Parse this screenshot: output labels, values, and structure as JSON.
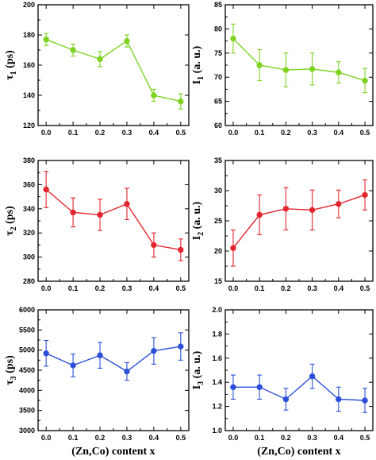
{
  "chart_data": [
    {
      "type": "line",
      "panel": "tau1",
      "ylabel": "τ1 (ps)",
      "ylabel_main": "τ",
      "ylabel_sub": "1",
      "ylabel_unit": " (ps)",
      "xlabel": "",
      "color": "#7ed321",
      "x": [
        0.0,
        0.1,
        0.2,
        0.3,
        0.4,
        0.5
      ],
      "y": [
        177,
        170,
        164,
        176,
        140,
        136
      ],
      "err": [
        4,
        4,
        5,
        4,
        4,
        5
      ],
      "ylim": [
        120,
        200
      ],
      "yticks": [
        "120",
        "140",
        "160",
        "180",
        "200"
      ],
      "xticks": [
        "0.0",
        "0.1",
        "0.2",
        "0.3",
        "0.4",
        "0.5"
      ]
    },
    {
      "type": "line",
      "panel": "I1",
      "ylabel": "I1 (a. u.)",
      "ylabel_main": "I",
      "ylabel_sub": "1",
      "ylabel_unit": " (a. u.)",
      "xlabel": "",
      "color": "#7ed321",
      "x": [
        0.0,
        0.1,
        0.2,
        0.3,
        0.4,
        0.5
      ],
      "y": [
        78,
        72.5,
        71.5,
        71.7,
        71,
        69.3
      ],
      "err": [
        3,
        3.2,
        3.5,
        3.3,
        2.2,
        2.5
      ],
      "ylim": [
        60,
        85
      ],
      "yticks": [
        "60",
        "65",
        "70",
        "75",
        "80",
        "85"
      ],
      "xticks": [
        "0.0",
        "0.1",
        "0.2",
        "0.3",
        "0.4",
        "0.5"
      ]
    },
    {
      "type": "line",
      "panel": "tau2",
      "ylabel": "τ2 (ps)",
      "ylabel_main": "τ",
      "ylabel_sub": "2",
      "ylabel_unit": " (ps)",
      "xlabel": "",
      "color": "#e3262f",
      "x": [
        0.0,
        0.1,
        0.2,
        0.3,
        0.4,
        0.5
      ],
      "y": [
        356,
        337,
        335,
        344,
        310,
        306
      ],
      "err": [
        15,
        12,
        13,
        13,
        10,
        9
      ],
      "ylim": [
        280,
        380
      ],
      "yticks": [
        "280",
        "300",
        "320",
        "340",
        "360",
        "380"
      ],
      "xticks": [
        "0.0",
        "0.1",
        "0.2",
        "0.3",
        "0.4",
        "0.5"
      ]
    },
    {
      "type": "line",
      "panel": "I2",
      "ylabel": "I2 (a. u.)",
      "ylabel_main": "I",
      "ylabel_sub": "2",
      "ylabel_unit": " (a. u.)",
      "xlabel": "",
      "color": "#e3262f",
      "x": [
        0.0,
        0.1,
        0.2,
        0.3,
        0.4,
        0.5
      ],
      "y": [
        20.5,
        26,
        27,
        26.8,
        27.8,
        29.3
      ],
      "err": [
        3,
        3.3,
        3.5,
        3.3,
        2.3,
        2.5
      ],
      "ylim": [
        15,
        35
      ],
      "yticks": [
        "15",
        "20",
        "25",
        "30",
        "35"
      ],
      "xticks": [
        "0.0",
        "0.1",
        "0.2",
        "0.3",
        "0.4",
        "0.5"
      ]
    },
    {
      "type": "line",
      "panel": "tau3",
      "ylabel": "τ3 (ps)",
      "ylabel_main": "τ",
      "ylabel_sub": "3",
      "ylabel_unit": " (ps)",
      "xlabel": "(Zn,Co) content x",
      "color": "#2b4fd8",
      "x": [
        0.0,
        0.1,
        0.2,
        0.3,
        0.4,
        0.5
      ],
      "y": [
        4920,
        4620,
        4870,
        4470,
        4980,
        5090
      ],
      "err": [
        320,
        280,
        320,
        220,
        330,
        340
      ],
      "ylim": [
        3000,
        6000
      ],
      "yticks": [
        "3000",
        "3500",
        "4000",
        "4500",
        "5000",
        "5500",
        "6000"
      ],
      "xticks": [
        "0.0",
        "0.1",
        "0.2",
        "0.3",
        "0.4",
        "0.5"
      ]
    },
    {
      "type": "line",
      "panel": "I3",
      "ylabel": "I3 (a. u.)",
      "ylabel_main": "I",
      "ylabel_sub": "3",
      "ylabel_unit": " (a. u.)",
      "xlabel": "(Zn,Co) content x",
      "color": "#2b4fd8",
      "x": [
        0.0,
        0.1,
        0.2,
        0.3,
        0.4,
        0.5
      ],
      "y": [
        1.36,
        1.36,
        1.26,
        1.45,
        1.26,
        1.25
      ],
      "err": [
        0.1,
        0.1,
        0.09,
        0.1,
        0.1,
        0.1
      ],
      "ylim": [
        1.0,
        2.0
      ],
      "yticks": [
        "1.0",
        "1.2",
        "1.4",
        "1.6",
        "1.8",
        "2.0"
      ],
      "xticks": [
        "0.0",
        "0.1",
        "0.2",
        "0.3",
        "0.4",
        "0.5"
      ]
    }
  ]
}
